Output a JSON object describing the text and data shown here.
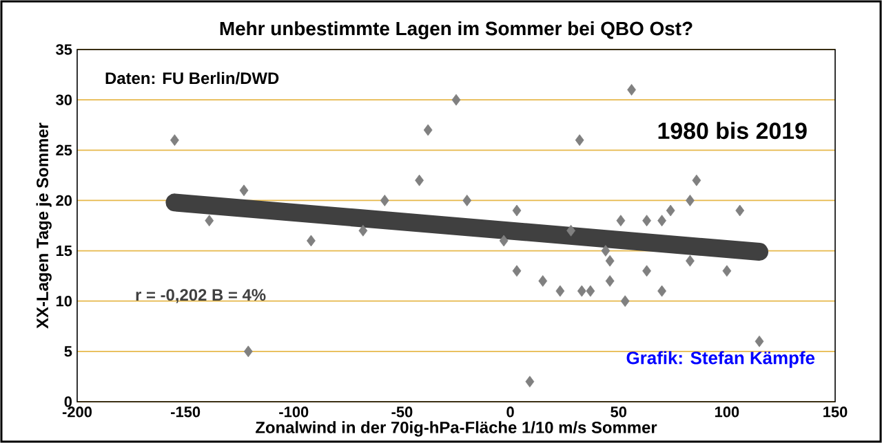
{
  "chart_data": {
    "type": "scatter",
    "title": "Mehr unbestimmte Lagen im Sommer bei QBO Ost?",
    "xlabel": "Zonalwind in der 70ig-hPa-Fläche 1/10 m/s Sommer",
    "ylabel": "XX-Lagen Tage je Sommer",
    "annotations": [
      "Daten: FU Berlin/DWD",
      "1980 bis 2019",
      "r = -0,202  B =  4%",
      "Grafik: Stefan Kämpfe"
    ],
    "series": [
      {
        "color": "#808080",
        "marker": "diamond",
        "x": [
          -155,
          -139,
          -123,
          -121,
          -92,
          -68,
          -58,
          -42,
          -38,
          -25,
          -20,
          -3,
          3,
          3,
          9,
          15,
          23,
          28,
          32,
          33,
          37,
          44,
          46,
          46,
          51,
          53,
          56,
          63,
          63,
          70,
          70,
          74,
          83,
          83,
          86,
          100,
          106,
          115
        ],
        "values": [
          26,
          18,
          21,
          5,
          16,
          17,
          20,
          22,
          27,
          30,
          20,
          16,
          19,
          13,
          2,
          12,
          11,
          17,
          26,
          11,
          11,
          15,
          14,
          12,
          18,
          10,
          31,
          18,
          13,
          11,
          18,
          19,
          14,
          20,
          22,
          13,
          19,
          6
        ]
      },
      {
        "type": "line",
        "color": "#404040",
        "marker": "none",
        "x": [
          -155,
          115
        ],
        "values": [
          19.8,
          14.9
        ]
      }
    ],
    "xlim": [
      -200,
      150
    ],
    "xticks": [
      -200,
      -150,
      -100,
      -50,
      0,
      50,
      100,
      150
    ],
    "ylim": [
      0,
      35
    ],
    "yticks": [
      0,
      5,
      10,
      15,
      20,
      25,
      30,
      35
    ],
    "grid": "y"
  }
}
